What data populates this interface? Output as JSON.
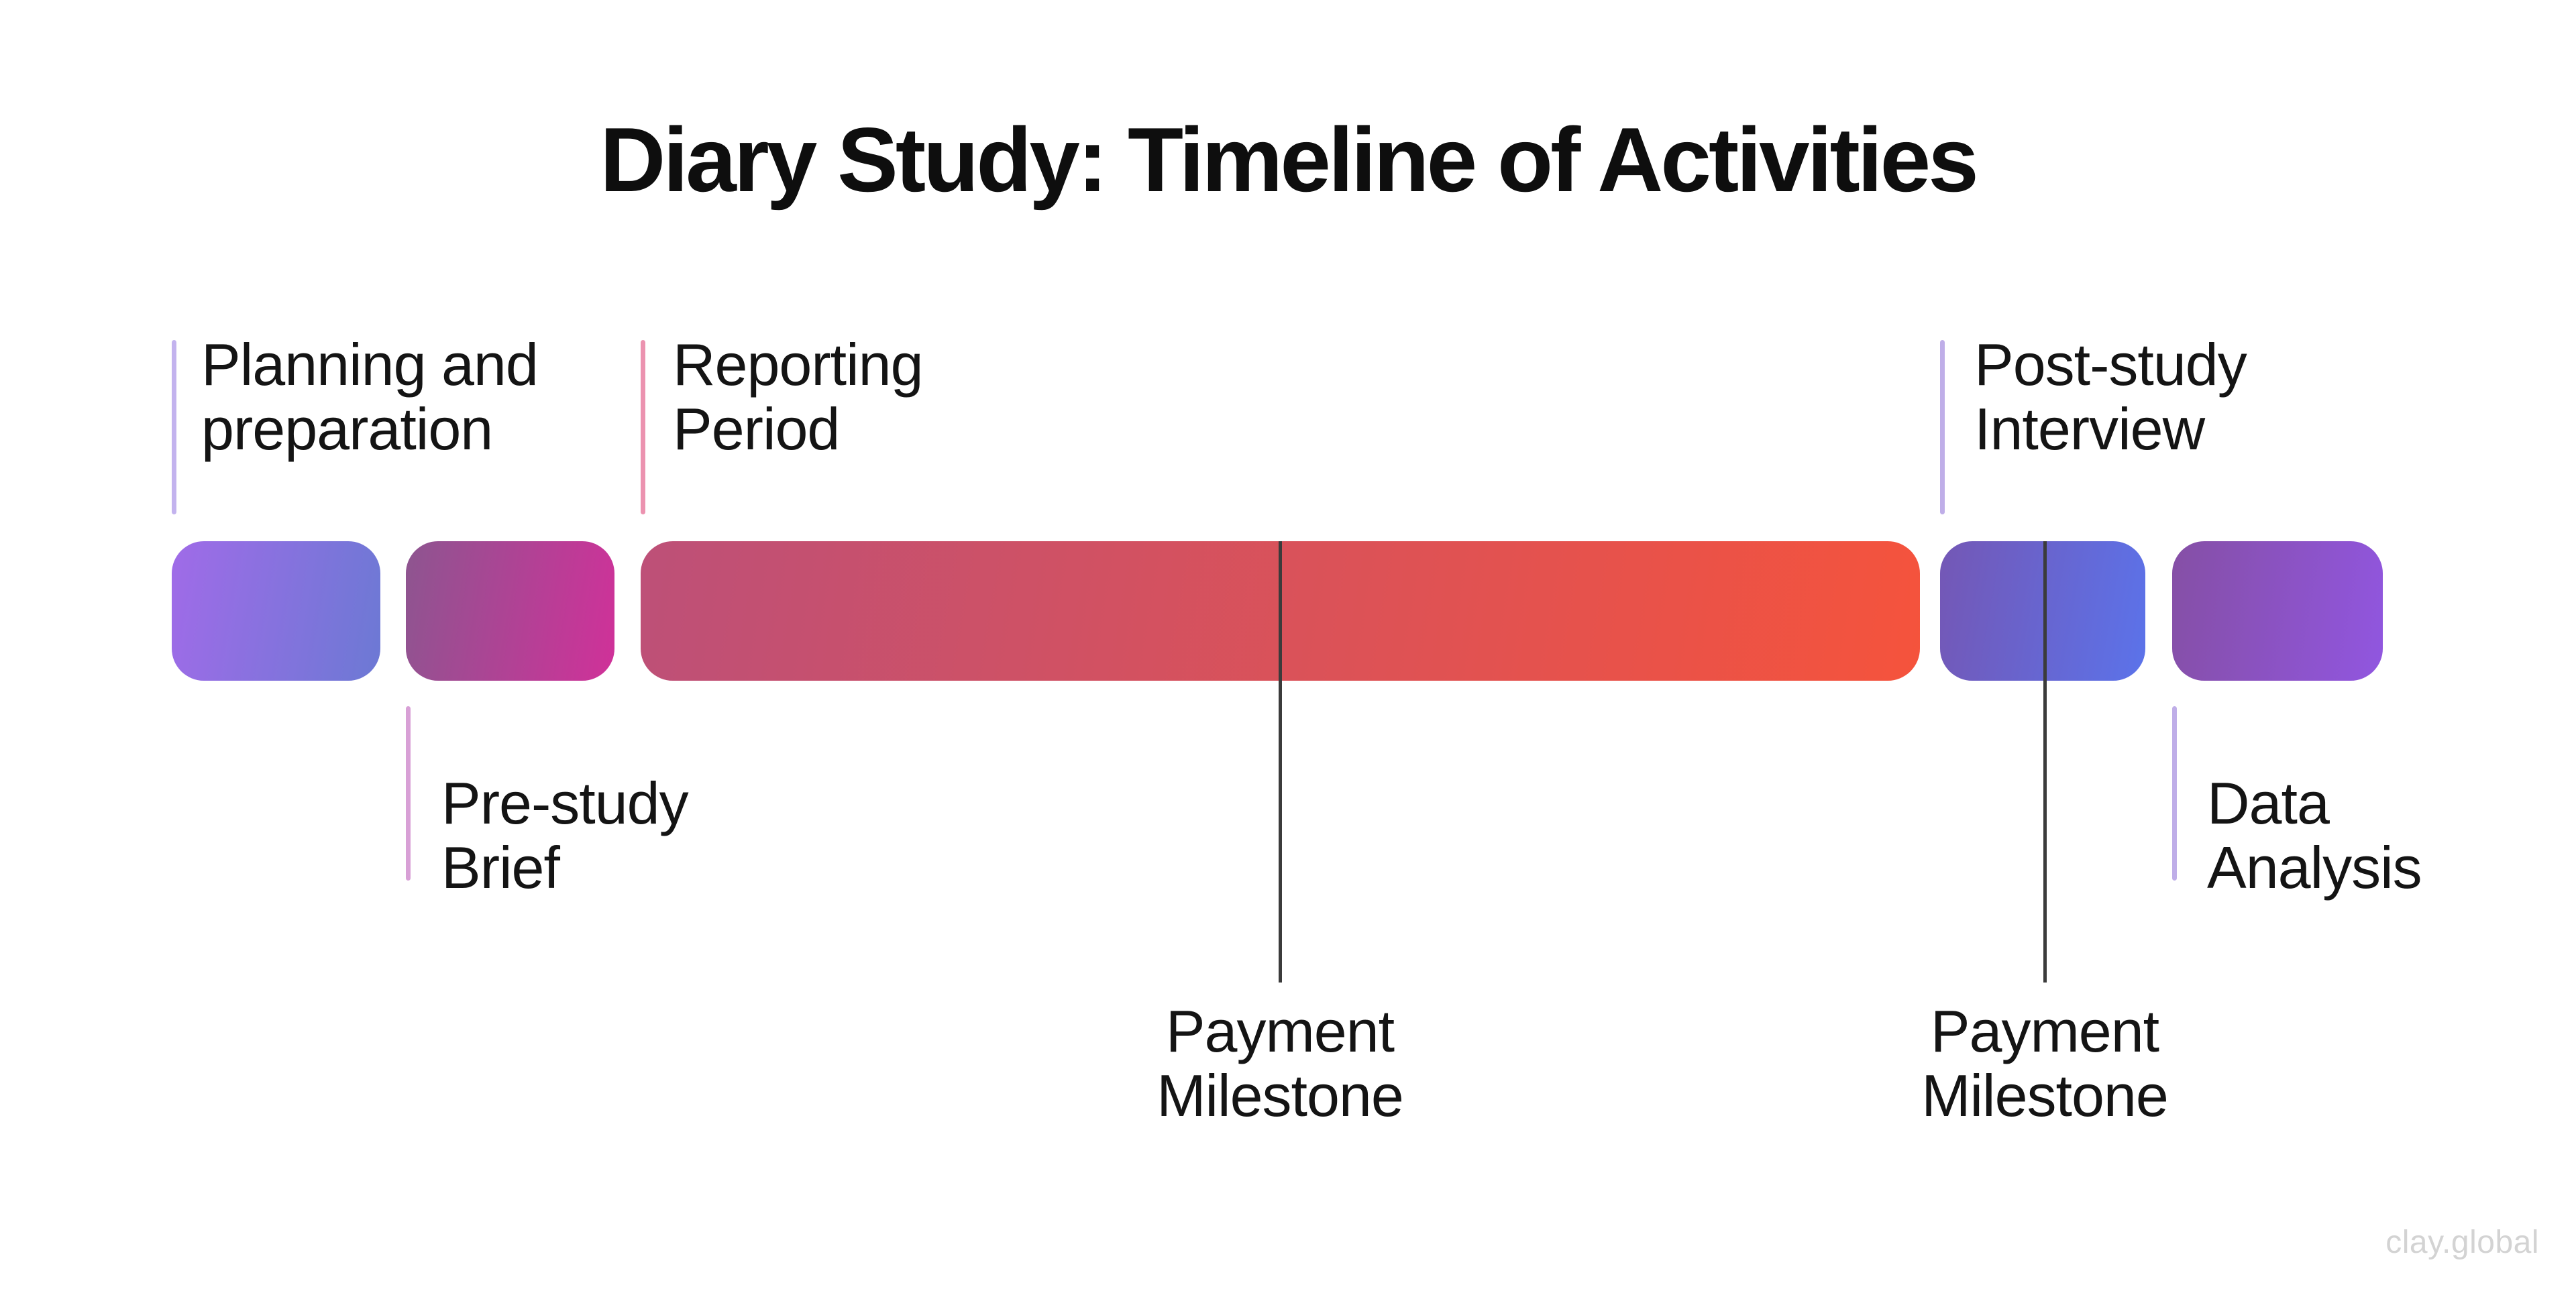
{
  "title": "Diary Study: Timeline of Activities",
  "watermark": "clay.global",
  "timeline": {
    "segments": [
      {
        "name": "Planning and preparation",
        "color_from": "#A06BE8",
        "color_to": "#6C79D4",
        "gradient": "linear-gradient(100deg, #A06BE8, #6C79D4)"
      },
      {
        "name": "Pre-study Brief",
        "color_from": "#8D5590",
        "color_to": "#D03199",
        "gradient": "linear-gradient(100deg, #8D5590, #D03199)"
      },
      {
        "name": "Reporting Period",
        "color_from": "#BD5078",
        "color_to": "#F5533C",
        "gradient": "linear-gradient(100deg, #BD5078, #F5533C)"
      },
      {
        "name": "Post-study Interview",
        "color_from": "#7457B5",
        "color_to": "#5B73EA",
        "gradient": "linear-gradient(100deg, #7457B5, #5B73EA)"
      },
      {
        "name": "Data Analysis",
        "color_from": "#854FA5",
        "color_to": "#9156E0",
        "gradient": "linear-gradient(100deg, #854FA5, #9156E0)"
      }
    ],
    "labels_above": [
      {
        "text": "Planning and\npreparation",
        "tick_color": "#C3B3EE"
      },
      {
        "text": "Reporting\nPeriod",
        "tick_color": "#EC93B0"
      },
      {
        "text": "Post-study\nInterview",
        "tick_color": "#BFAEE8"
      }
    ],
    "labels_below": [
      {
        "text": "Pre-study\nBrief",
        "tick_color": "#D8A0D6"
      },
      {
        "text": "Data\nAnalysis",
        "tick_color": "#BFAEE8"
      }
    ],
    "milestones": [
      {
        "text": "Payment\nMilestone",
        "line_color": "#3B3B3B"
      },
      {
        "text": "Payment\nMilestone",
        "line_color": "#3B3B3B"
      }
    ]
  }
}
